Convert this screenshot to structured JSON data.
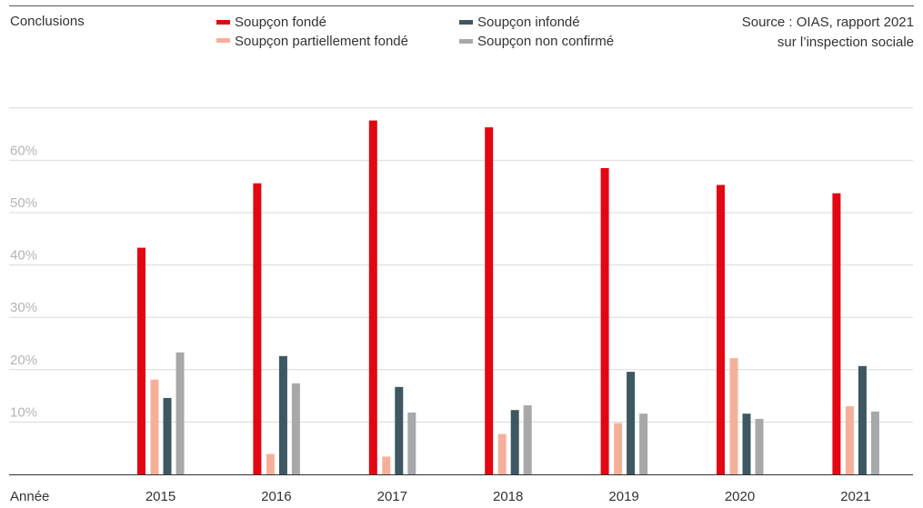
{
  "header": {
    "section_label": "Conclusions",
    "source_line1": "Source : OIAS, rapport 2021",
    "source_line2": "sur l’inspection sociale"
  },
  "colors": {
    "fonde": "#e30613",
    "partiel": "#f5b09a",
    "infonde": "#3d5862",
    "non_confirme": "#a7a8aa"
  },
  "legend": [
    {
      "label": "Soupçon fondé",
      "color_key": "fonde"
    },
    {
      "label": "Soupçon partiellement fondé",
      "color_key": "partiel"
    },
    {
      "label": "Soupçon infondé",
      "color_key": "infonde"
    },
    {
      "label": "Soupçon non confirmé",
      "color_key": "non_confirme"
    }
  ],
  "chart_data": {
    "type": "bar",
    "xlabel": "Année",
    "ylabel": "",
    "ylim": [
      0,
      70
    ],
    "yticks": [
      10,
      20,
      30,
      40,
      50,
      60
    ],
    "ytick_labels": [
      "10%",
      "20%",
      "30%",
      "40%",
      "50%",
      "60%"
    ],
    "categories": [
      "2015",
      "2016",
      "2017",
      "2018",
      "2019",
      "2020",
      "2021"
    ],
    "series": [
      {
        "name": "Soupçon fondé",
        "values": [
          43.3,
          55.6,
          67.6,
          66.3,
          58.5,
          55.3,
          53.7
        ]
      },
      {
        "name": "Soupçon partiellement fondé",
        "values": [
          18.1,
          3.9,
          3.4,
          7.7,
          9.8,
          22.2,
          13.0
        ]
      },
      {
        "name": "Soupçon infondé",
        "values": [
          14.6,
          22.6,
          16.7,
          12.3,
          19.6,
          11.6,
          20.7
        ]
      },
      {
        "name": "Soupçon non confirmé",
        "values": [
          23.3,
          17.4,
          11.8,
          13.2,
          11.6,
          10.6,
          12.0
        ]
      }
    ],
    "grid": true,
    "legend_position": "top"
  }
}
